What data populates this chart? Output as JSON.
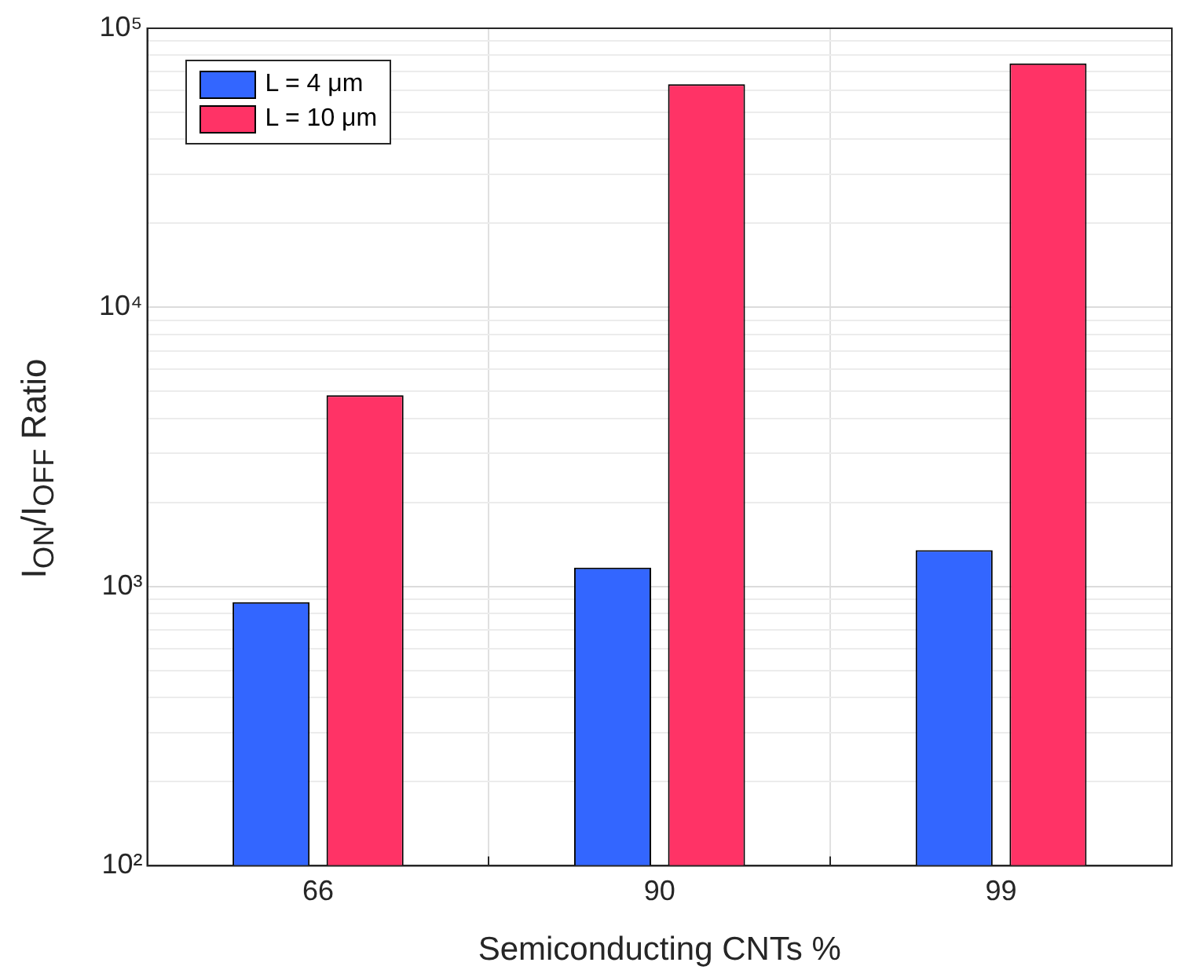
{
  "chart_data": {
    "type": "bar",
    "categories": [
      "66",
      "90",
      "99"
    ],
    "series": [
      {
        "name": "L = 4 μm",
        "color": "#3366ff",
        "values": [
          880,
          1170,
          1350
        ]
      },
      {
        "name": "L = 10 μm",
        "color": "#ff3366",
        "values": [
          4850,
          63000,
          74800
        ]
      }
    ],
    "xlabel": "Semiconducting CNTs %",
    "ylabel": "I$_{ON}$/I$_{OFF}$ Ratio",
    "log": "y",
    "ylim": [
      100,
      100000
    ],
    "yticks": [
      {
        "value": 100,
        "label": "10²"
      },
      {
        "value": 200,
        "label": null
      },
      {
        "value": 300,
        "label": null
      },
      {
        "value": 400,
        "label": null
      },
      {
        "value": 500,
        "label": null
      },
      {
        "value": 600,
        "label": null
      },
      {
        "value": 700,
        "label": null
      },
      {
        "value": 800,
        "label": null
      },
      {
        "value": 900,
        "label": null
      },
      {
        "value": 1000,
        "label": "10³"
      },
      {
        "value": 2000,
        "label": null
      },
      {
        "value": 3000,
        "label": null
      },
      {
        "value": 4000,
        "label": null
      },
      {
        "value": 5000,
        "label": null
      },
      {
        "value": 6000,
        "label": null
      },
      {
        "value": 7000,
        "label": null
      },
      {
        "value": 8000,
        "label": null
      },
      {
        "value": 9000,
        "label": null
      },
      {
        "value": 10000,
        "label": "10⁴"
      },
      {
        "value": 20000,
        "label": null
      },
      {
        "value": 30000,
        "label": null
      },
      {
        "value": 40000,
        "label": null
      },
      {
        "value": 50000,
        "label": null
      },
      {
        "value": 60000,
        "label": null
      },
      {
        "value": 70000,
        "label": null
      },
      {
        "value": 80000,
        "label": null
      },
      {
        "value": 90000,
        "label": null
      },
      {
        "value": 100000,
        "label": "10⁵"
      }
    ],
    "grid": true,
    "legend": "top left"
  }
}
